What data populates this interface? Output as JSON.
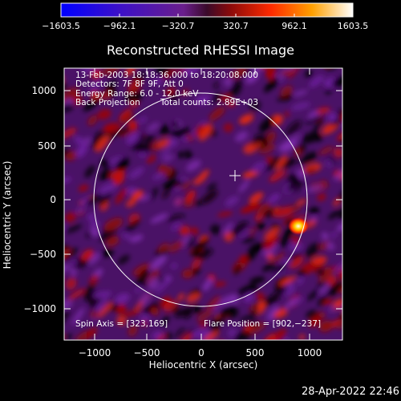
{
  "colorbar": {
    "ticks": [
      "−1603.5",
      "−962.1",
      "−320.7",
      "320.7",
      "962.1",
      "1603.5"
    ]
  },
  "title": "Reconstructed RHESSI Image",
  "annotations": {
    "time": "13-Feb-2003 18:18:36.000 to 18:20:08.000",
    "detectors": "Detectors: 7F 8F 9F, Att 0",
    "energy": "Energy Range: 6.0 - 12.0 keV",
    "method": "Back Projection",
    "counts": "Total counts: 2.89E+03"
  },
  "footer": {
    "spin_axis": "Spin Axis = [323,169]",
    "flare_position": "Flare Position = [902,−237]"
  },
  "axes": {
    "xlabel": "Heliocentric X (arcsec)",
    "ylabel": "Heliocentric Y (arcsec)",
    "xticks": [
      "−1000",
      "−500",
      "0",
      "500",
      "1000"
    ],
    "yticks": [
      "1000",
      "500",
      "0",
      "−500",
      "−1000"
    ]
  },
  "timestamp": "28-Apr-2022 22:46",
  "colors": {
    "background": "#000000",
    "foreground": "#ffffff"
  }
}
